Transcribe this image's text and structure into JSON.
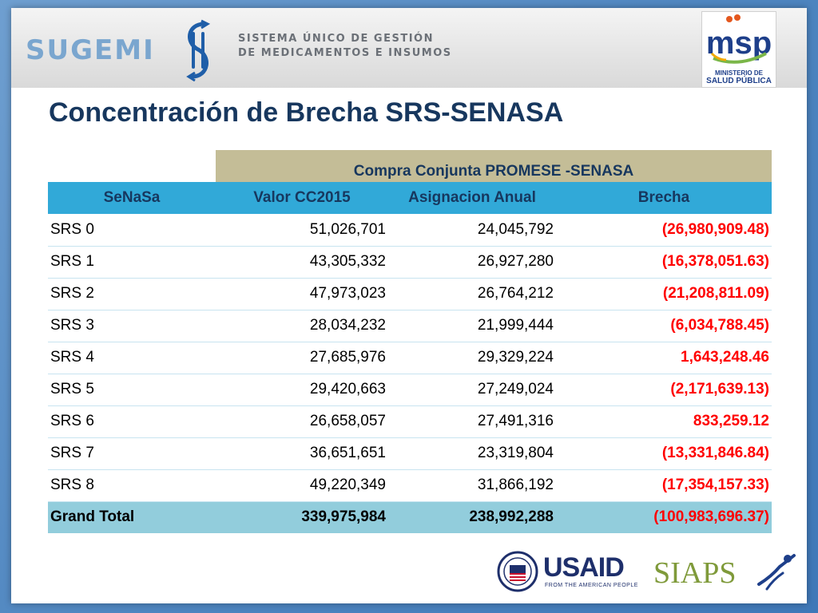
{
  "header": {
    "sugemi_wordmark": "SUGEMI",
    "sugemi_tagline_line1": "SISTEMA ÚNICO DE GESTIÓN",
    "sugemi_tagline_line2": "DE MEDICAMENTOS E INSUMOS",
    "msp_logo_text": "msp",
    "msp_caption_line1": "MINISTERIO DE",
    "msp_caption_line2": "SALUD PÚBLICA"
  },
  "title": "Concentración de Brecha SRS-SENASA",
  "table": {
    "group_header": "Compra Conjunta PROMESE -SENASA",
    "columns": [
      "SeNaSa",
      "Valor CC2015",
      "Asignacion Anual",
      "Brecha"
    ],
    "rows": [
      {
        "region": "SRS 0",
        "valor": "51,026,701",
        "asignacion": "24,045,792",
        "brecha": "(26,980,909.48)"
      },
      {
        "region": "SRS 1",
        "valor": "43,305,332",
        "asignacion": "26,927,280",
        "brecha": "(16,378,051.63)"
      },
      {
        "region": "SRS 2",
        "valor": "47,973,023",
        "asignacion": "26,764,212",
        "brecha": "(21,208,811.09)"
      },
      {
        "region": "SRS 3",
        "valor": "28,034,232",
        "asignacion": "21,999,444",
        "brecha": "(6,034,788.45)"
      },
      {
        "region": "SRS 4",
        "valor": "27,685,976",
        "asignacion": "29,329,224",
        "brecha": "1,643,248.46"
      },
      {
        "region": "SRS 5",
        "valor": "29,420,663",
        "asignacion": "27,249,024",
        "brecha": "(2,171,639.13)"
      },
      {
        "region": "SRS 6",
        "valor": "26,658,057",
        "asignacion": "27,491,316",
        "brecha": "833,259.12"
      },
      {
        "region": "SRS 7",
        "valor": "36,651,651",
        "asignacion": "23,319,804",
        "brecha": "(13,331,846.84)"
      },
      {
        "region": "SRS 8",
        "valor": "49,220,349",
        "asignacion": "31,866,192",
        "brecha": "(17,354,157.33)"
      }
    ],
    "total": {
      "region": "Grand Total",
      "valor": "339,975,984",
      "asignacion": "238,992,288",
      "brecha": "(100,983,696.37)"
    }
  },
  "footer": {
    "usaid_wordmark": "USAID",
    "usaid_tagline": "FROM THE AMERICAN PEOPLE",
    "siaps_wordmark": "SIAPS"
  },
  "colors": {
    "title": "#17375e",
    "group_header_bg": "#c4bd97",
    "column_header_bg": "#31a9d8",
    "total_row_bg": "#92cddc",
    "brecha_text": "#ff0000"
  }
}
